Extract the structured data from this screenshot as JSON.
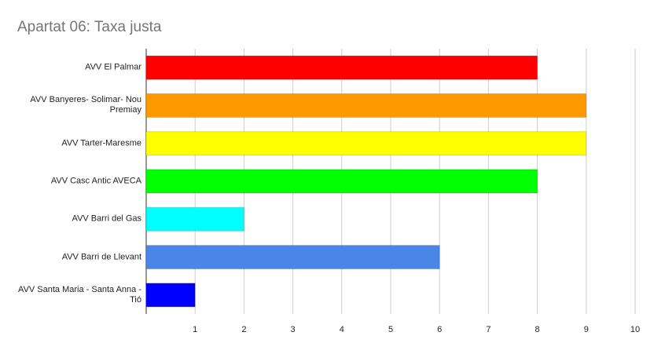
{
  "chart_data": {
    "type": "hbar",
    "title": "Apartat 06: Taxa justa",
    "categories": [
      "AVV El Palmar",
      "AVV Banyeres- Solimar- Nou Premiay",
      "AVV Tarter-Maresme",
      "AVV Casc Antic AVECA",
      "AVV Barri del Gas",
      "AVV Barri de Llevant",
      "AVV Santa Maria - Santa Anna - Tió"
    ],
    "values": [
      8,
      9,
      9,
      8,
      2,
      6,
      1
    ],
    "colors": [
      "#ff0000",
      "#ff9900",
      "#ffff00",
      "#00ff00",
      "#00ffff",
      "#4a86e8",
      "#0000ff"
    ],
    "xlim": [
      0,
      10
    ],
    "xticks": [
      1,
      2,
      3,
      4,
      5,
      6,
      7,
      8,
      9,
      10
    ],
    "grid": true
  }
}
